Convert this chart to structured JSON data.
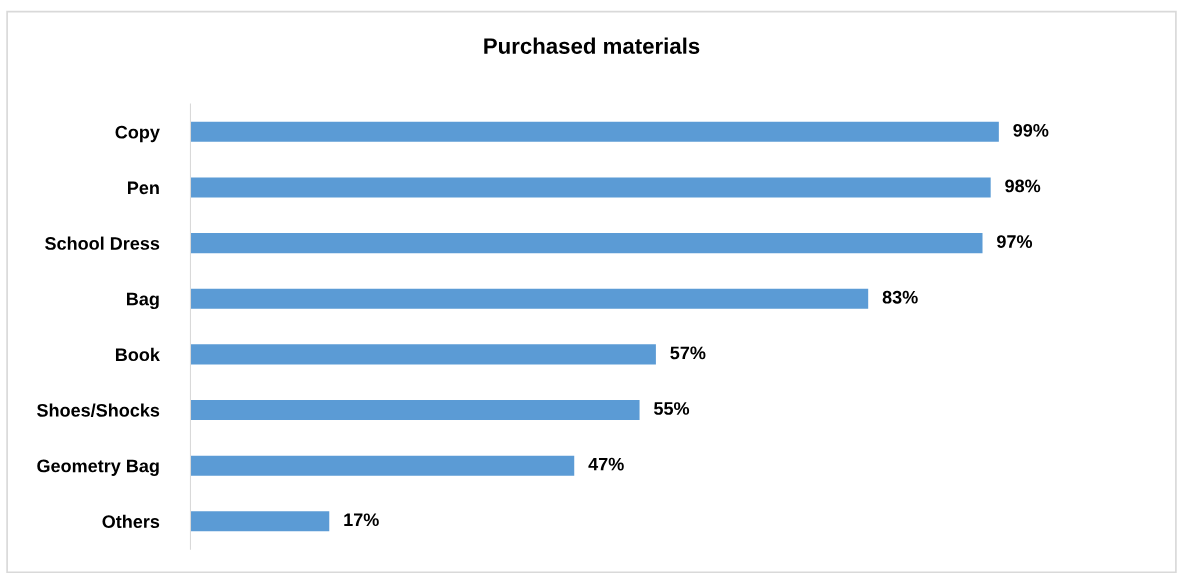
{
  "chart_data": {
    "type": "bar",
    "title": "Purchased materials",
    "orientation": "horizontal",
    "categories": [
      "Copy",
      "Pen",
      "School Dress",
      "Bag",
      "Book",
      "Shoes/Shocks",
      "Geometry Bag",
      "Others"
    ],
    "values": [
      99,
      98,
      97,
      83,
      57,
      55,
      47,
      17
    ],
    "value_labels": [
      "99%",
      "98%",
      "97%",
      "83%",
      "57%",
      "55%",
      "47%",
      "17%"
    ],
    "color": "#5b9bd5",
    "grid": false,
    "legend": false
  }
}
